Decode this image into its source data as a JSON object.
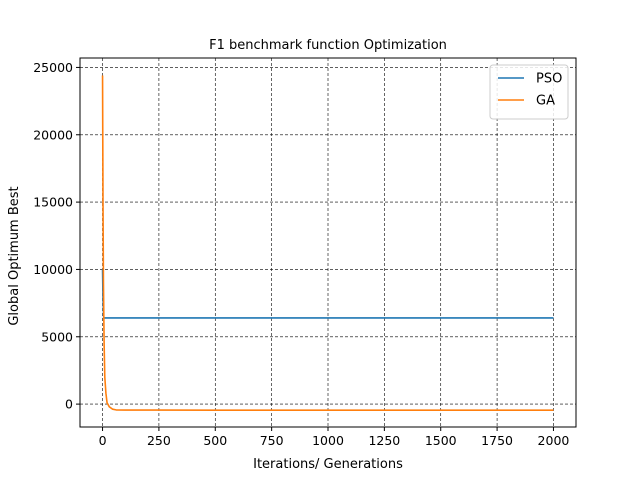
{
  "chart_data": {
    "type": "line",
    "title": "F1 benchmark function Optimization",
    "xlabel": "Iterations/ Generations",
    "ylabel": "Global Optimum Best",
    "xlim": [
      -100,
      2100
    ],
    "ylim": [
      -1700,
      25700
    ],
    "xticks": [
      0,
      250,
      500,
      750,
      1000,
      1250,
      1500,
      1750,
      2000
    ],
    "yticks": [
      0,
      5000,
      10000,
      15000,
      20000,
      25000
    ],
    "grid": true,
    "legend_position": "top-right",
    "series": [
      {
        "name": "PSO",
        "color": "#1f77b4",
        "points": [
          [
            0,
            10000
          ],
          [
            2,
            7800
          ],
          [
            5,
            6400
          ],
          [
            10,
            6400
          ],
          [
            100,
            6400
          ],
          [
            500,
            6400
          ],
          [
            1000,
            6400
          ],
          [
            1500,
            6400
          ],
          [
            2000,
            6400
          ]
        ]
      },
      {
        "name": "GA",
        "color": "#ff7f0e",
        "points": [
          [
            0,
            24400
          ],
          [
            2,
            15000
          ],
          [
            4,
            9000
          ],
          [
            7,
            4500
          ],
          [
            10,
            2000
          ],
          [
            15,
            800
          ],
          [
            20,
            100
          ],
          [
            30,
            -200
          ],
          [
            45,
            -380
          ],
          [
            60,
            -430
          ],
          [
            100,
            -440
          ],
          [
            250,
            -440
          ],
          [
            500,
            -450
          ],
          [
            1000,
            -450
          ],
          [
            1500,
            -450
          ],
          [
            2000,
            -450
          ]
        ]
      }
    ]
  }
}
